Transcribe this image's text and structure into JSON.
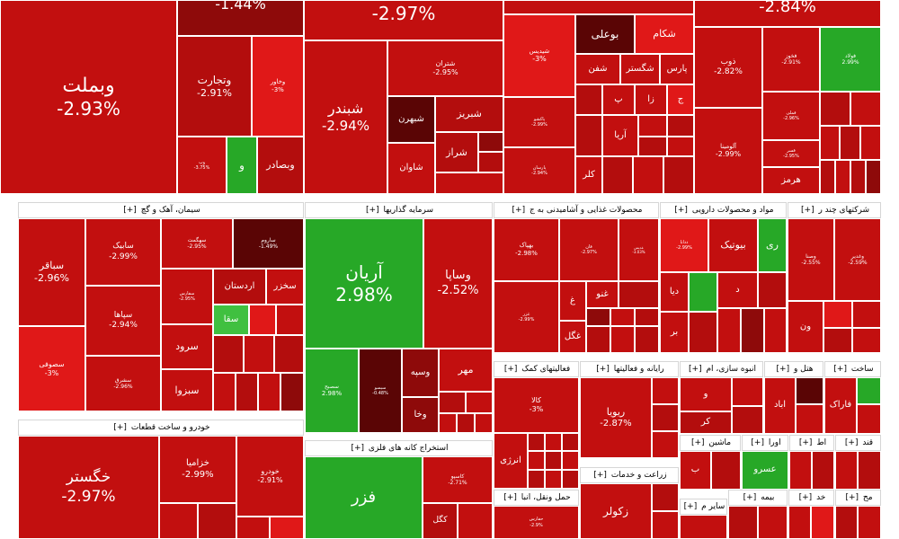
{
  "colors": {
    "red_bright": "#e01818",
    "red": "#c20f0f",
    "red_mid": "#b30d0d",
    "red_deep": "#8e0a0a",
    "red_dark": "#5a0505",
    "green": "#27a827",
    "green_light": "#40c040",
    "header_bg": "#ffffff",
    "border": "#ffffff"
  },
  "sectors": [
    {
      "label": "سیمان، آهک و گچ",
      "marker": "[+]"
    },
    {
      "label": "سرمایه گذاریها",
      "marker": "[+]"
    },
    {
      "label": "محصولات غذایی و آشامیدنی به ج",
      "marker": "[+]"
    },
    {
      "label": "مواد و محصولات دارویی",
      "marker": "[+]"
    },
    {
      "label": "شرکتهای چند ر",
      "marker": "[+]"
    },
    {
      "label": "خودرو و ساخت قطعات",
      "marker": "[+]"
    },
    {
      "label": "استخراج کانه های فلزی",
      "marker": "[+]"
    },
    {
      "label": "فعالیتهای کمک",
      "marker": "[+]"
    },
    {
      "label": "رایانه و فعالیتها",
      "marker": "[+]"
    },
    {
      "label": "انبوه سازی، ام",
      "marker": "[+]"
    },
    {
      "label": "هتل و",
      "marker": "[+]"
    },
    {
      "label": "ساخت",
      "marker": "[+]"
    },
    {
      "label": "ماشین",
      "marker": "[+]"
    },
    {
      "label": "اورا",
      "marker": "[+]"
    },
    {
      "label": "اط",
      "marker": "[+]"
    },
    {
      "label": "قند",
      "marker": "[+]"
    },
    {
      "label": "زراعت و خدمات",
      "marker": "[+]"
    },
    {
      "label": "بیمه",
      "marker": "[+]"
    },
    {
      "label": "خد",
      "marker": "[+]"
    },
    {
      "label": "مح",
      "marker": "[+]"
    },
    {
      "label": "حمل ونقل، انبا",
      "marker": "[+]"
    },
    {
      "label": "سایر م",
      "marker": "[+]"
    }
  ],
  "tiles": [
    {
      "name": "وبملت",
      "pct": "-2.93%"
    },
    {
      "name": "",
      "pct": "-1.44%"
    },
    {
      "name": "وتجارت",
      "pct": "-2.91%"
    },
    {
      "name": "وخاور",
      "pct": "-3%"
    },
    {
      "name": "وبصادر",
      "pct": ""
    },
    {
      "name": "و",
      "pct": ""
    },
    {
      "name": "وپ",
      "pct": "-3.75%"
    },
    {
      "name": "",
      "pct": "-2.97%"
    },
    {
      "name": "شبندر",
      "pct": "-2.94%"
    },
    {
      "name": "شتران",
      "pct": "-2.95%"
    },
    {
      "name": "شبهرن",
      "pct": ""
    },
    {
      "name": "شبریز",
      "pct": ""
    },
    {
      "name": "شراز",
      "pct": ""
    },
    {
      "name": "شاوان",
      "pct": ""
    },
    {
      "name": "شیدیس",
      "pct": "-3%"
    },
    {
      "name": "بوعلی",
      "pct": ""
    },
    {
      "name": "شکام",
      "pct": ""
    },
    {
      "name": "شگستر",
      "pct": ""
    },
    {
      "name": "پارس",
      "pct": ""
    },
    {
      "name": "شفن",
      "pct": ""
    },
    {
      "name": "پ",
      "pct": ""
    },
    {
      "name": "زا",
      "pct": ""
    },
    {
      "name": "ج",
      "pct": ""
    },
    {
      "name": "آریا",
      "pct": ""
    },
    {
      "name": "کلر",
      "pct": ""
    },
    {
      "name": "پاکشو",
      "pct": "-2.99%"
    },
    {
      "name": "پارسان",
      "pct": "-2.94%"
    },
    {
      "name": "",
      "pct": "-2.84%"
    },
    {
      "name": "ذوب",
      "pct": "-2.82%"
    },
    {
      "name": "فخوز",
      "pct": "-2.91%"
    },
    {
      "name": "فولاد",
      "pct": "2.99%"
    },
    {
      "name": "فملی",
      "pct": "-2.96%"
    },
    {
      "name": "فسر",
      "pct": "-2.95%"
    },
    {
      "name": "آلومینا",
      "pct": "-2.99%"
    },
    {
      "name": "هرمز",
      "pct": ""
    },
    {
      "name": "سباقر",
      "pct": "-2.96%"
    },
    {
      "name": "سابیک",
      "pct": "-2.99%"
    },
    {
      "name": "سهگمت",
      "pct": "-2.95%"
    },
    {
      "name": "ساروم",
      "pct": "-1.49%"
    },
    {
      "name": "اردستان",
      "pct": ""
    },
    {
      "name": "سخزر",
      "pct": ""
    },
    {
      "name": "سپاها",
      "pct": "-2.94%"
    },
    {
      "name": "سفارس",
      "pct": "-2.95%"
    },
    {
      "name": "سقا",
      "pct": ""
    },
    {
      "name": "سصوفی",
      "pct": "-3%"
    },
    {
      "name": "سرود",
      "pct": ""
    },
    {
      "name": "سشرق",
      "pct": "-2.96%"
    },
    {
      "name": "سبزوا",
      "pct": ""
    },
    {
      "name": "آریان",
      "pct": "2.98%"
    },
    {
      "name": "وساپا",
      "pct": "-2.52%"
    },
    {
      "name": "سصبح",
      "pct": "2.98%"
    },
    {
      "name": "سیسو",
      "pct": "-0.48%"
    },
    {
      "name": "وسپه",
      "pct": ""
    },
    {
      "name": "مهر",
      "pct": ""
    },
    {
      "name": "وخا",
      "pct": ""
    },
    {
      "name": "بهپاک",
      "pct": "-2.98%"
    },
    {
      "name": "فان",
      "pct": "-2.97%"
    },
    {
      "name": "غدیس",
      "pct": "-3.03%"
    },
    {
      "name": "غ",
      "pct": ""
    },
    {
      "name": "غنو",
      "pct": ""
    },
    {
      "name": "غزر",
      "pct": "-2.99%"
    },
    {
      "name": "غگل",
      "pct": ""
    },
    {
      "name": "ددانا",
      "pct": "-2.99%"
    },
    {
      "name": "بیوتیک",
      "pct": ""
    },
    {
      "name": "ری",
      "pct": ""
    },
    {
      "name": "دیا",
      "pct": ""
    },
    {
      "name": "د",
      "pct": ""
    },
    {
      "name": "بر",
      "pct": ""
    },
    {
      "name": "وصنا",
      "pct": "-2.55%"
    },
    {
      "name": "وغدیر",
      "pct": "-2.59%"
    },
    {
      "name": "ون",
      "pct": ""
    },
    {
      "name": "خگستر",
      "pct": "-2.97%"
    },
    {
      "name": "خزامیا",
      "pct": "-2.99%"
    },
    {
      "name": "خودرو",
      "pct": "-2.91%"
    },
    {
      "name": "فزر",
      "pct": ""
    },
    {
      "name": "کاسپو",
      "pct": "-2.71%"
    },
    {
      "name": "کگل",
      "pct": ""
    },
    {
      "name": "کالا",
      "pct": "-3%"
    },
    {
      "name": "انرژی",
      "pct": ""
    },
    {
      "name": "ریویا",
      "pct": "-2.87%"
    },
    {
      "name": "و",
      "pct": ""
    },
    {
      "name": "کر",
      "pct": ""
    },
    {
      "name": "اباد",
      "pct": ""
    },
    {
      "name": "فاراک",
      "pct": ""
    },
    {
      "name": "عسرو",
      "pct": ""
    },
    {
      "name": "زکولر",
      "pct": ""
    },
    {
      "name": "حفارس",
      "pct": "-2.9%"
    },
    {
      "name": "ب",
      "pct": ""
    }
  ]
}
